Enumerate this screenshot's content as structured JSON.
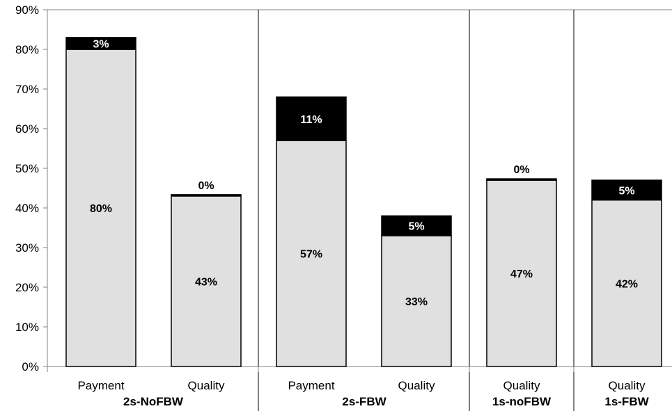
{
  "chart_data": {
    "type": "bar",
    "stacked": true,
    "ylim": [
      0,
      90
    ],
    "y_tick_step": 10,
    "y_tick_format": "percent",
    "grid": false,
    "title": "",
    "xlabel": "",
    "ylabel": "",
    "groups": [
      {
        "name": "2s-NoFBW",
        "bars": [
          {
            "category": "Payment",
            "base": 80,
            "top": 3,
            "base_label": "80%",
            "top_label": "3%"
          },
          {
            "category": "Quality",
            "base": 43,
            "top": 0,
            "base_label": "43%",
            "top_label": "0%"
          }
        ]
      },
      {
        "name": "2s-FBW",
        "bars": [
          {
            "category": "Payment",
            "base": 57,
            "top": 11,
            "base_label": "57%",
            "top_label": "11%"
          },
          {
            "category": "Quality",
            "base": 33,
            "top": 5,
            "base_label": "33%",
            "top_label": "5%"
          }
        ]
      },
      {
        "name": "1s-noFBW",
        "bars": [
          {
            "category": "Quality",
            "base": 47,
            "top": 0,
            "base_label": "47%",
            "top_label": "0%"
          }
        ]
      },
      {
        "name": "1s-FBW",
        "bars": [
          {
            "category": "Quality",
            "base": 42,
            "top": 5,
            "base_label": "42%",
            "top_label": "5%"
          }
        ]
      }
    ],
    "colors": {
      "base": "#e0e0e0",
      "top": "#000000",
      "outline": "#000000"
    }
  }
}
